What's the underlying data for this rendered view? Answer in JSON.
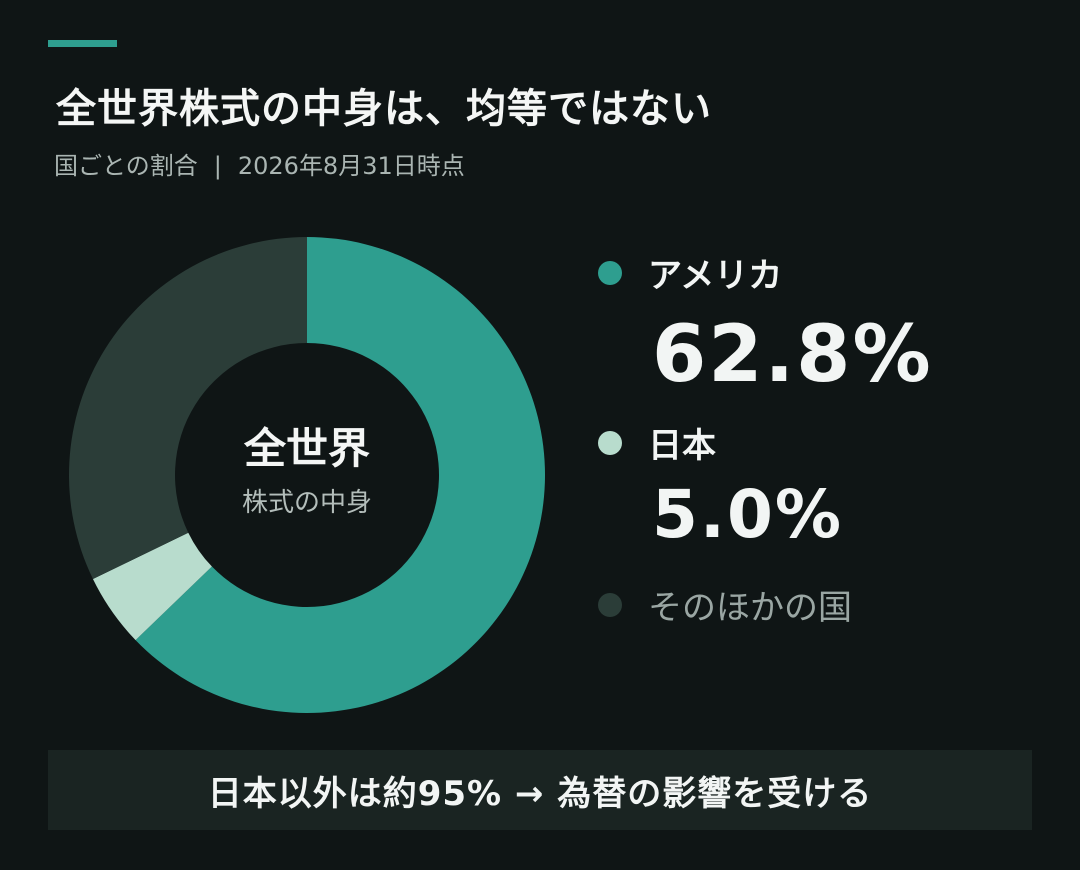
{
  "title": "全世界株式の中身は、均等ではない",
  "subtitle": {
    "text": "国ごとの割合",
    "separator": "|",
    "date": "2026年8月31日時点"
  },
  "chart_data": {
    "type": "pie",
    "variant": "donut",
    "center_label": {
      "title": "全世界",
      "subtitle": "株式の中身"
    },
    "series": [
      {
        "name": "アメリカ",
        "value": 62.8,
        "value_label": "62.8%",
        "color": "#2e9e8f"
      },
      {
        "name": "日本",
        "value": 5.0,
        "value_label": "5.0%",
        "color": "#b8dccd"
      },
      {
        "name": "そのほかの国",
        "value": 32.2,
        "color": "#2b3d38"
      }
    ],
    "legend_placement": "right"
  },
  "footer": {
    "text": "日本以外は約95% → 為替の影響を受ける"
  },
  "colors": {
    "background": "#0f1515",
    "accent": "#2e9e8f",
    "footer_bg": "#1a2422"
  }
}
